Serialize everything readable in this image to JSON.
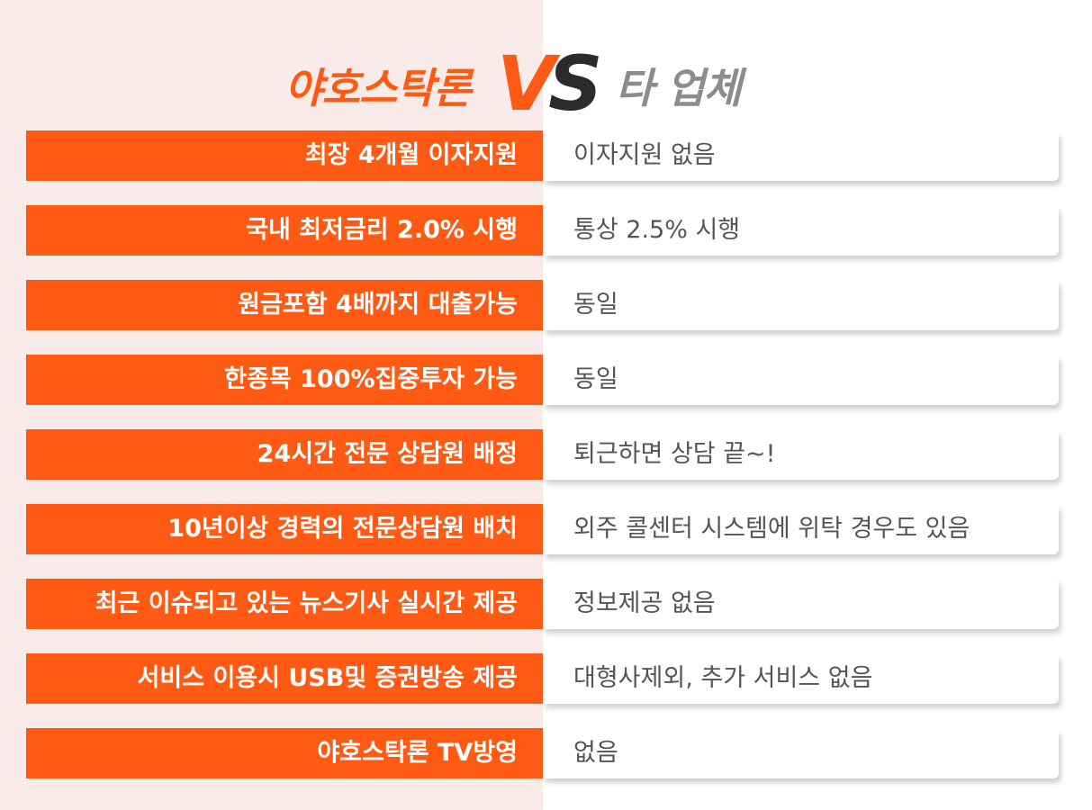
{
  "header": {
    "brand": "야호스탁론",
    "vs_v": "V",
    "vs_s": "S",
    "competitor": "타 업체"
  },
  "colors": {
    "accent": "#ff5a14",
    "left_bg": "#f9ebe9",
    "right_text": "#555555",
    "vs_dark": "#2b2b2b",
    "competitor_title": "#8c8c8c"
  },
  "comparison": [
    {
      "ours": "최장 4개월 이자지원",
      "theirs": "이자지원 없음"
    },
    {
      "ours": "국내 최저금리 2.0% 시행",
      "theirs": "통상 2.5% 시행"
    },
    {
      "ours": "원금포함 4배까지 대출가능",
      "theirs": "동일"
    },
    {
      "ours": "한종목 100%집중투자 가능",
      "theirs": "동일"
    },
    {
      "ours": "24시간 전문 상담원 배정",
      "theirs": "퇴근하면 상담 끝~!"
    },
    {
      "ours": "10년이상 경력의 전문상담원 배치",
      "theirs": "외주 콜센터 시스템에 위탁 경우도 있음"
    },
    {
      "ours": "최근 이슈되고 있는 뉴스기사 실시간 제공",
      "theirs": "정보제공 없음"
    },
    {
      "ours": "서비스 이용시 USB및 증권방송 제공",
      "theirs": "대형사제외, 추가 서비스 없음"
    },
    {
      "ours": "야호스탁론 TV방영",
      "theirs": "없음"
    }
  ]
}
